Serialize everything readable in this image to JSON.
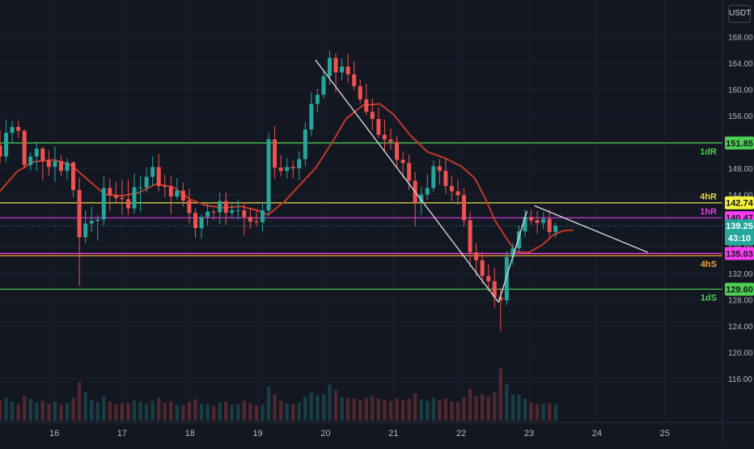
{
  "chart_data": {
    "type": "candlestick",
    "currency": "USDT",
    "y_ticks": [
      "168.00",
      "164.00",
      "160.00",
      "156.00",
      "152.00",
      "148.00",
      "144.00",
      "140.00",
      "136.00",
      "132.00",
      "128.00",
      "124.00",
      "120.00",
      "116.00"
    ],
    "x_ticks": [
      "16",
      "17",
      "18",
      "19",
      "20",
      "21",
      "22",
      "23",
      "24",
      "25"
    ],
    "ylim": [
      113.4,
      169.8
    ],
    "xlim": [
      15.2,
      25.85
    ],
    "grid": true,
    "levels": [
      {
        "label": "1dR",
        "value": 151.85,
        "price": "151.85",
        "color": "#4cce50",
        "badge_bg": "#4cce50",
        "badge_text": "#131722"
      },
      {
        "label": "4hR",
        "value": 142.74,
        "price": "142.74",
        "color": "#e6d64a",
        "badge_bg": "#f7f23b",
        "badge_text": "#131722"
      },
      {
        "label": "1hR",
        "value": 140.47,
        "price": "140.47",
        "color": "#e040e0",
        "badge_bg": "#ff3cf2",
        "badge_text": "#131722"
      },
      {
        "label": "",
        "value": 135.03,
        "price": "135.03",
        "color": "#ff3cf2",
        "badge_bg": "#ff3cf2",
        "badge_text": "#131722"
      },
      {
        "label": "4hS",
        "value": 134.7,
        "price": "",
        "color": "#f0a630",
        "badge_bg": "",
        "badge_text": ""
      },
      {
        "label": "1dS",
        "value": 129.6,
        "price": "129.60",
        "color": "#4cce50",
        "badge_bg": "#4cce50",
        "badge_text": "#131722"
      }
    ],
    "last_price": {
      "value": 139.25,
      "price": "139.25",
      "countdown": "43:10",
      "badge_bg": "#26a69a"
    },
    "trendlines": [
      {
        "from": [
          19.85,
          164.5
        ],
        "to": [
          22.55,
          127.6
        ],
        "color": "#d1d4dc"
      },
      {
        "from": [
          22.55,
          127.6
        ],
        "to": [
          22.97,
          141.5
        ],
        "color": "#d1d4dc"
      },
      {
        "from": [
          23.08,
          142.3
        ],
        "to": [
          24.75,
          135.2
        ],
        "color": "#d1d4dc"
      }
    ],
    "moving_average": {
      "color": "#c0392b",
      "points": [
        [
          15.2,
          144.5
        ],
        [
          15.45,
          147.5
        ],
        [
          15.7,
          149.0
        ],
        [
          16.0,
          149.3
        ],
        [
          16.25,
          148.5
        ],
        [
          16.5,
          146.2
        ],
        [
          16.75,
          144.0
        ],
        [
          17.0,
          143.8
        ],
        [
          17.25,
          144.3
        ],
        [
          17.5,
          145.6
        ],
        [
          17.75,
          145.2
        ],
        [
          18.0,
          143.3
        ],
        [
          18.25,
          142.3
        ],
        [
          18.5,
          142.0
        ],
        [
          18.75,
          142.2
        ],
        [
          19.0,
          141.6
        ],
        [
          19.15,
          140.9
        ],
        [
          19.4,
          143.0
        ],
        [
          19.65,
          145.8
        ],
        [
          19.85,
          148.0
        ],
        [
          20.1,
          152.0
        ],
        [
          20.3,
          155.5
        ],
        [
          20.55,
          157.6
        ],
        [
          20.8,
          157.8
        ],
        [
          21.0,
          156.2
        ],
        [
          21.25,
          153.0
        ],
        [
          21.5,
          150.5
        ],
        [
          21.75,
          149.6
        ],
        [
          22.0,
          148.3
        ],
        [
          22.2,
          146.5
        ],
        [
          22.35,
          143.5
        ],
        [
          22.5,
          140.0
        ],
        [
          22.65,
          137.6
        ],
        [
          22.8,
          135.3
        ],
        [
          23.0,
          135.2
        ],
        [
          23.2,
          136.4
        ],
        [
          23.35,
          137.8
        ],
        [
          23.5,
          138.5
        ],
        [
          23.65,
          138.6
        ]
      ]
    },
    "candles": [
      [
        15.2,
        151.5,
        153.8,
        148.8,
        149.8
      ],
      [
        15.29,
        149.8,
        155.4,
        148.9,
        153.4
      ],
      [
        15.38,
        153.4,
        155.2,
        151.9,
        154.3
      ],
      [
        15.47,
        154.3,
        155.3,
        152.6,
        153.7
      ],
      [
        15.56,
        153.7,
        153.9,
        148.0,
        148.5
      ],
      [
        15.65,
        148.5,
        150.4,
        147.6,
        149.8
      ],
      [
        15.74,
        149.8,
        152.1,
        147.6,
        151.0
      ],
      [
        15.83,
        151.0,
        151.3,
        146.1,
        149.2
      ],
      [
        15.92,
        149.2,
        150.7,
        146.9,
        148.2
      ],
      [
        16.01,
        148.2,
        151.3,
        145.9,
        149.1
      ],
      [
        16.1,
        149.1,
        150.0,
        146.8,
        147.6
      ],
      [
        16.19,
        147.6,
        149.5,
        146.3,
        148.9
      ],
      [
        16.28,
        148.9,
        149.0,
        143.6,
        144.7
      ],
      [
        16.37,
        144.7,
        146.6,
        130.1,
        137.5
      ],
      [
        16.46,
        137.5,
        141.6,
        136.6,
        139.6
      ],
      [
        16.55,
        139.6,
        142.2,
        138.3,
        140.0
      ],
      [
        16.64,
        140.0,
        140.9,
        137.0,
        140.2
      ],
      [
        16.73,
        140.2,
        146.8,
        139.2,
        145.0
      ],
      [
        16.82,
        145.0,
        146.4,
        141.5,
        143.9
      ],
      [
        16.91,
        143.9,
        145.9,
        142.8,
        143.5
      ],
      [
        17.0,
        143.5,
        146.2,
        141.0,
        143.3
      ],
      [
        17.09,
        143.3,
        146.3,
        140.9,
        141.9
      ],
      [
        17.18,
        141.9,
        147.2,
        141.1,
        145.1
      ],
      [
        17.27,
        145.1,
        146.8,
        141.4,
        145.1
      ],
      [
        17.36,
        145.1,
        148.1,
        144.3,
        146.7
      ],
      [
        17.45,
        146.7,
        149.8,
        145.3,
        148.2
      ],
      [
        17.54,
        148.2,
        150.2,
        144.5,
        145.3
      ],
      [
        17.63,
        145.3,
        147.0,
        143.6,
        145.2
      ],
      [
        17.72,
        145.2,
        146.8,
        141.0,
        143.7
      ],
      [
        17.81,
        143.7,
        146.5,
        143.2,
        144.6
      ],
      [
        17.9,
        144.6,
        145.8,
        142.2,
        143.1
      ],
      [
        17.99,
        143.1,
        144.9,
        139.6,
        141.2
      ],
      [
        18.08,
        141.2,
        141.9,
        137.4,
        138.9
      ],
      [
        18.17,
        138.9,
        141.0,
        137.3,
        140.6
      ],
      [
        18.26,
        140.6,
        142.8,
        139.3,
        141.4
      ],
      [
        18.35,
        141.4,
        141.7,
        140.2,
        141.3
      ],
      [
        18.44,
        141.3,
        144.3,
        139.5,
        143.0
      ],
      [
        18.53,
        143.0,
        144.3,
        139.4,
        141.2
      ],
      [
        18.62,
        141.2,
        142.6,
        140.5,
        141.6
      ],
      [
        18.71,
        141.6,
        143.2,
        140.2,
        141.6
      ],
      [
        18.8,
        141.6,
        142.8,
        137.8,
        140.6
      ],
      [
        18.89,
        140.6,
        141.9,
        138.8,
        139.9
      ],
      [
        18.98,
        139.9,
        141.7,
        139.2,
        139.8
      ],
      [
        19.07,
        139.8,
        142.7,
        138.4,
        141.6
      ],
      [
        19.16,
        141.6,
        153.4,
        140.9,
        152.4
      ],
      [
        19.25,
        152.4,
        154.4,
        146.4,
        148.1
      ],
      [
        19.34,
        148.1,
        150.0,
        146.8,
        147.6
      ],
      [
        19.43,
        147.6,
        149.6,
        146.4,
        148.2
      ],
      [
        19.52,
        148.2,
        149.2,
        146.5,
        148.0
      ],
      [
        19.61,
        148.0,
        150.6,
        146.2,
        149.4
      ],
      [
        19.7,
        149.4,
        155.1,
        148.3,
        153.9
      ],
      [
        19.79,
        153.9,
        159.6,
        152.9,
        157.8
      ],
      [
        19.88,
        157.8,
        160.1,
        156.5,
        159.2
      ],
      [
        19.97,
        159.2,
        162.7,
        158.6,
        162.0
      ],
      [
        20.06,
        162.0,
        165.9,
        160.7,
        164.8
      ],
      [
        20.15,
        164.8,
        165.5,
        159.6,
        162.6
      ],
      [
        20.24,
        162.6,
        164.8,
        161.4,
        163.5
      ],
      [
        20.33,
        163.5,
        165.4,
        161.0,
        162.3
      ],
      [
        20.42,
        162.3,
        164.3,
        159.9,
        160.5
      ],
      [
        20.51,
        160.5,
        161.5,
        157.9,
        158.5
      ],
      [
        20.6,
        158.5,
        160.9,
        156.1,
        156.6
      ],
      [
        20.69,
        156.6,
        158.6,
        153.8,
        155.5
      ],
      [
        20.78,
        155.5,
        157.3,
        152.6,
        153.1
      ],
      [
        20.87,
        153.1,
        155.4,
        150.6,
        152.4
      ],
      [
        20.96,
        152.4,
        154.1,
        150.8,
        152.0
      ],
      [
        21.05,
        152.0,
        153.0,
        148.2,
        149.3
      ],
      [
        21.14,
        149.3,
        150.6,
        146.5,
        148.8
      ],
      [
        21.23,
        148.8,
        150.1,
        144.7,
        146.1
      ],
      [
        21.32,
        146.1,
        147.4,
        139.2,
        142.8
      ],
      [
        21.41,
        142.8,
        145.2,
        140.9,
        144.0
      ],
      [
        21.5,
        144.0,
        147.1,
        143.2,
        145.0
      ],
      [
        21.59,
        145.0,
        149.2,
        144.4,
        148.3
      ],
      [
        21.68,
        148.3,
        149.4,
        145.5,
        147.6
      ],
      [
        21.77,
        147.6,
        149.5,
        144.1,
        145.3
      ],
      [
        21.86,
        145.3,
        146.8,
        143.0,
        144.5
      ],
      [
        21.95,
        144.5,
        146.3,
        142.4,
        143.9
      ],
      [
        22.04,
        143.9,
        145.0,
        139.2,
        140.1
      ],
      [
        22.13,
        140.1,
        141.3,
        133.0,
        135.2
      ],
      [
        22.22,
        135.2,
        136.6,
        131.5,
        134.0
      ],
      [
        22.31,
        134.0,
        135.3,
        130.4,
        131.6
      ],
      [
        22.4,
        131.6,
        133.4,
        129.3,
        130.8
      ],
      [
        22.49,
        130.8,
        132.9,
        126.8,
        128.4
      ],
      [
        22.58,
        128.4,
        129.8,
        123.2,
        127.9
      ],
      [
        22.67,
        127.9,
        135.4,
        127.2,
        134.5
      ],
      [
        22.76,
        134.5,
        136.6,
        133.3,
        135.8
      ],
      [
        22.85,
        135.8,
        139.3,
        135.2,
        138.4
      ],
      [
        22.94,
        138.4,
        141.7,
        137.5,
        140.6
      ],
      [
        23.03,
        140.6,
        141.7,
        139.4,
        140.1
      ],
      [
        23.12,
        140.1,
        141.5,
        138.1,
        139.7
      ],
      [
        23.21,
        139.7,
        141.3,
        138.7,
        140.3
      ],
      [
        23.3,
        140.3,
        141.7,
        137.6,
        138.3
      ],
      [
        23.39,
        138.3,
        139.7,
        137.5,
        139.25
      ]
    ],
    "volume_max": 1.0,
    "volume": [
      0.38,
      0.42,
      0.35,
      0.3,
      0.45,
      0.4,
      0.33,
      0.36,
      0.31,
      0.34,
      0.29,
      0.32,
      0.41,
      0.7,
      0.52,
      0.38,
      0.33,
      0.44,
      0.35,
      0.3,
      0.31,
      0.33,
      0.37,
      0.34,
      0.3,
      0.36,
      0.42,
      0.33,
      0.35,
      0.29,
      0.28,
      0.34,
      0.39,
      0.31,
      0.3,
      0.27,
      0.33,
      0.35,
      0.29,
      0.3,
      0.36,
      0.32,
      0.28,
      0.3,
      0.62,
      0.48,
      0.36,
      0.31,
      0.3,
      0.33,
      0.44,
      0.52,
      0.46,
      0.48,
      0.66,
      0.55,
      0.43,
      0.41,
      0.4,
      0.37,
      0.42,
      0.45,
      0.4,
      0.38,
      0.36,
      0.41,
      0.37,
      0.4,
      0.5,
      0.39,
      0.36,
      0.42,
      0.37,
      0.4,
      0.35,
      0.34,
      0.42,
      0.58,
      0.45,
      0.48,
      0.44,
      0.52,
      0.95,
      0.66,
      0.48,
      0.47,
      0.4,
      0.33,
      0.3,
      0.31,
      0.32,
      0.29
    ]
  }
}
